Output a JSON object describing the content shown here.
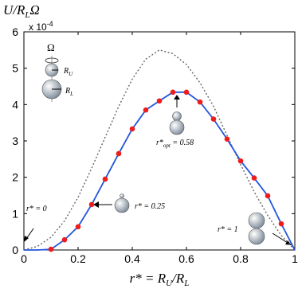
{
  "chart_data": {
    "type": "line",
    "y_label": [
      "U/R",
      "L",
      "Ω"
    ],
    "x_label": [
      "r* = R",
      "U",
      "/R",
      "L"
    ],
    "multiplier": [
      "x 10",
      "-4"
    ],
    "x": [
      0,
      0.05,
      0.1,
      0.15,
      0.2,
      0.25,
      0.3,
      0.35,
      0.4,
      0.45,
      0.5,
      0.55,
      0.6,
      0.65,
      0.7,
      0.75,
      0.8,
      0.85,
      0.9,
      0.95,
      1
    ],
    "xlim": [
      0,
      1
    ],
    "ylim": [
      0,
      6
    ],
    "xticks": [
      0,
      0.2,
      0.4,
      0.6,
      0.8,
      1
    ],
    "yticks": [
      0,
      1,
      2,
      3,
      4,
      5,
      6
    ],
    "series": [
      {
        "color": "#666666",
        "style": "dotted",
        "values": [
          0,
          0.1,
          0.35,
          0.8,
          1.45,
          2.25,
          3.1,
          3.95,
          4.7,
          5.25,
          5.5,
          5.4,
          5.1,
          4.6,
          3.95,
          3.15,
          2.35,
          1.6,
          0.95,
          0.4,
          0
        ]
      },
      {
        "color": "#2255dd",
        "style": "solid",
        "values": [
          0,
          0,
          0.02,
          0.28,
          0.64,
          1.25,
          1.95,
          2.65,
          3.33,
          3.85,
          4.1,
          4.34,
          4.34,
          4.07,
          3.6,
          3.05,
          2.45,
          1.98,
          1.49,
          0.72,
          0
        ]
      },
      {
        "color": "#ee1c1c",
        "style": "markers",
        "values": [
          null,
          null,
          0.02,
          0.28,
          0.64,
          1.25,
          1.95,
          2.65,
          3.33,
          3.85,
          4.1,
          4.34,
          4.34,
          4.07,
          3.6,
          3.05,
          2.45,
          1.98,
          1.49,
          0.72,
          null
        ]
      }
    ],
    "annotations": [
      {
        "parts": [
          "Ω"
        ]
      },
      {
        "parts": [
          "R",
          "U"
        ]
      },
      {
        "parts": [
          "R",
          "L"
        ]
      },
      {
        "parts": [
          "r*",
          "opt",
          " = 0.58"
        ]
      },
      {
        "parts": [
          "r* = 0.25"
        ]
      },
      {
        "parts": [
          "r* = 0"
        ]
      },
      {
        "parts": [
          "r* = 1"
        ]
      }
    ]
  }
}
